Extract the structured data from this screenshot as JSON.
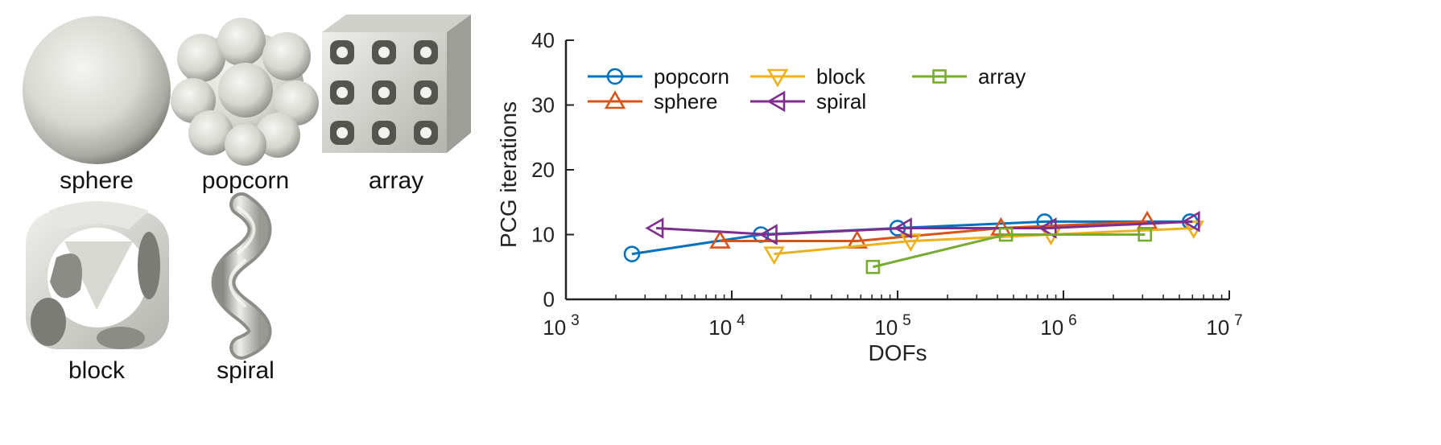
{
  "shapes": [
    {
      "id": "sphere",
      "label": "sphere"
    },
    {
      "id": "popcorn",
      "label": "popcorn"
    },
    {
      "id": "array",
      "label": "array"
    },
    {
      "id": "block",
      "label": "block"
    },
    {
      "id": "spiral",
      "label": "spiral"
    }
  ],
  "chart_data": {
    "type": "line",
    "title": "",
    "xlabel": "DOFs",
    "ylabel": "PCG iterations",
    "xscale": "log",
    "xlim": [
      1000,
      10000000
    ],
    "ylim": [
      0,
      40
    ],
    "xticks": [
      {
        "value": 1000,
        "base": "10",
        "exp": "3"
      },
      {
        "value": 10000,
        "base": "10",
        "exp": "4"
      },
      {
        "value": 100000,
        "base": "10",
        "exp": "5"
      },
      {
        "value": 1000000,
        "base": "10",
        "exp": "6"
      },
      {
        "value": 10000000,
        "base": "10",
        "exp": "7"
      }
    ],
    "yticks": [
      0,
      10,
      20,
      30,
      40
    ],
    "grid": false,
    "legend_position": "top-left",
    "series": [
      {
        "name": "popcorn",
        "color": "#0072BD",
        "marker": "circle",
        "x": [
          2500,
          15000,
          100000,
          770000,
          5800000
        ],
        "y": [
          7,
          10,
          11,
          12,
          12
        ]
      },
      {
        "name": "sphere",
        "color": "#D95319",
        "marker": "triangle-up",
        "x": [
          8500,
          57000,
          420000,
          3200000
        ],
        "y": [
          9,
          9,
          11,
          12
        ]
      },
      {
        "name": "block",
        "color": "#EDB120",
        "marker": "triangle-down",
        "x": [
          18000,
          120000,
          840000,
          6100000
        ],
        "y": [
          7,
          9,
          10,
          11
        ]
      },
      {
        "name": "spiral",
        "color": "#7E2F8E",
        "marker": "triangle-left",
        "x": [
          3500,
          17000,
          110000,
          820000,
          6000000
        ],
        "y": [
          11,
          10,
          11,
          11,
          12
        ]
      },
      {
        "name": "array",
        "color": "#77AC30",
        "marker": "square",
        "x": [
          71000,
          450000,
          3100000
        ],
        "y": [
          5,
          10,
          10
        ]
      }
    ]
  }
}
